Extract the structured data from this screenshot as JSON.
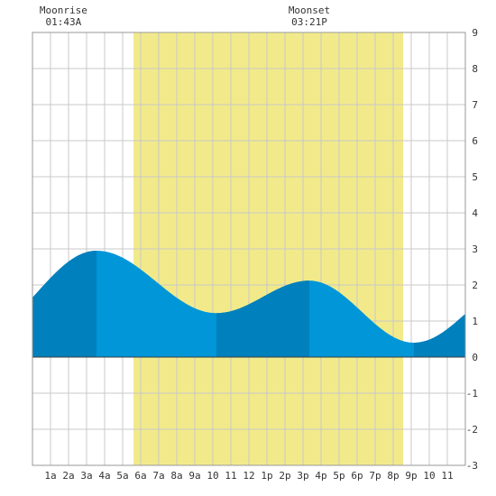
{
  "chart_data": {
    "type": "area",
    "ylim": [
      -3,
      9
    ],
    "xlim": [
      0,
      24
    ],
    "grid": true,
    "x_ticks": [
      {
        "x": 1,
        "label": "1a"
      },
      {
        "x": 2,
        "label": "2a"
      },
      {
        "x": 3,
        "label": "3a"
      },
      {
        "x": 4,
        "label": "4a"
      },
      {
        "x": 5,
        "label": "5a"
      },
      {
        "x": 6,
        "label": "6a"
      },
      {
        "x": 7,
        "label": "7a"
      },
      {
        "x": 8,
        "label": "8a"
      },
      {
        "x": 9,
        "label": "9a"
      },
      {
        "x": 10,
        "label": "10"
      },
      {
        "x": 11,
        "label": "11"
      },
      {
        "x": 12,
        "label": "12"
      },
      {
        "x": 13,
        "label": "1p"
      },
      {
        "x": 14,
        "label": "2p"
      },
      {
        "x": 15,
        "label": "3p"
      },
      {
        "x": 16,
        "label": "4p"
      },
      {
        "x": 17,
        "label": "5p"
      },
      {
        "x": 18,
        "label": "6p"
      },
      {
        "x": 19,
        "label": "7p"
      },
      {
        "x": 20,
        "label": "8p"
      },
      {
        "x": 21,
        "label": "9p"
      },
      {
        "x": 22,
        "label": "10"
      },
      {
        "x": 23,
        "label": "11"
      }
    ],
    "y_ticks": [
      {
        "y": 9,
        "label": "9"
      },
      {
        "y": 8,
        "label": "8"
      },
      {
        "y": 7,
        "label": "7"
      },
      {
        "y": 6,
        "label": "6"
      },
      {
        "y": 5,
        "label": "5"
      },
      {
        "y": 4,
        "label": "4"
      },
      {
        "y": 3,
        "label": "3"
      },
      {
        "y": 2,
        "label": "2"
      },
      {
        "y": 1,
        "label": "1"
      },
      {
        "y": 0,
        "label": "0"
      },
      {
        "y": -1,
        "label": "-1"
      },
      {
        "y": -2,
        "label": "-2"
      },
      {
        "y": -3,
        "label": "-3"
      }
    ],
    "tide_extremes": [
      {
        "time": 3.55,
        "height": 2.95
      },
      {
        "time": 10.2,
        "height": 1.22
      },
      {
        "time": 15.35,
        "height": 2.12
      },
      {
        "time": 21.15,
        "height": 0.4
      }
    ],
    "tide_start": {
      "time": 0,
      "height": 1.65
    },
    "tide_end": {
      "time": 24,
      "height": 1.2
    },
    "daylight": {
      "start": 5.6,
      "end": 20.55
    },
    "dark_shade_segments": [
      [
        0,
        3.55
      ],
      [
        10.2,
        15.35
      ],
      [
        21.15,
        24
      ]
    ],
    "colors": {
      "daylight": "#f2ea8a",
      "tide_light": "#0096d8",
      "tide_dark": "#0080bc",
      "grid": "#c8c8c8",
      "border": "#999999",
      "zero_line": "#404040"
    },
    "moon_events": [
      {
        "label": "Moonrise",
        "time_label": "01:43A",
        "x": 1.72
      },
      {
        "label": "Moonset",
        "time_label": "03:21P",
        "x": 15.35
      }
    ]
  }
}
